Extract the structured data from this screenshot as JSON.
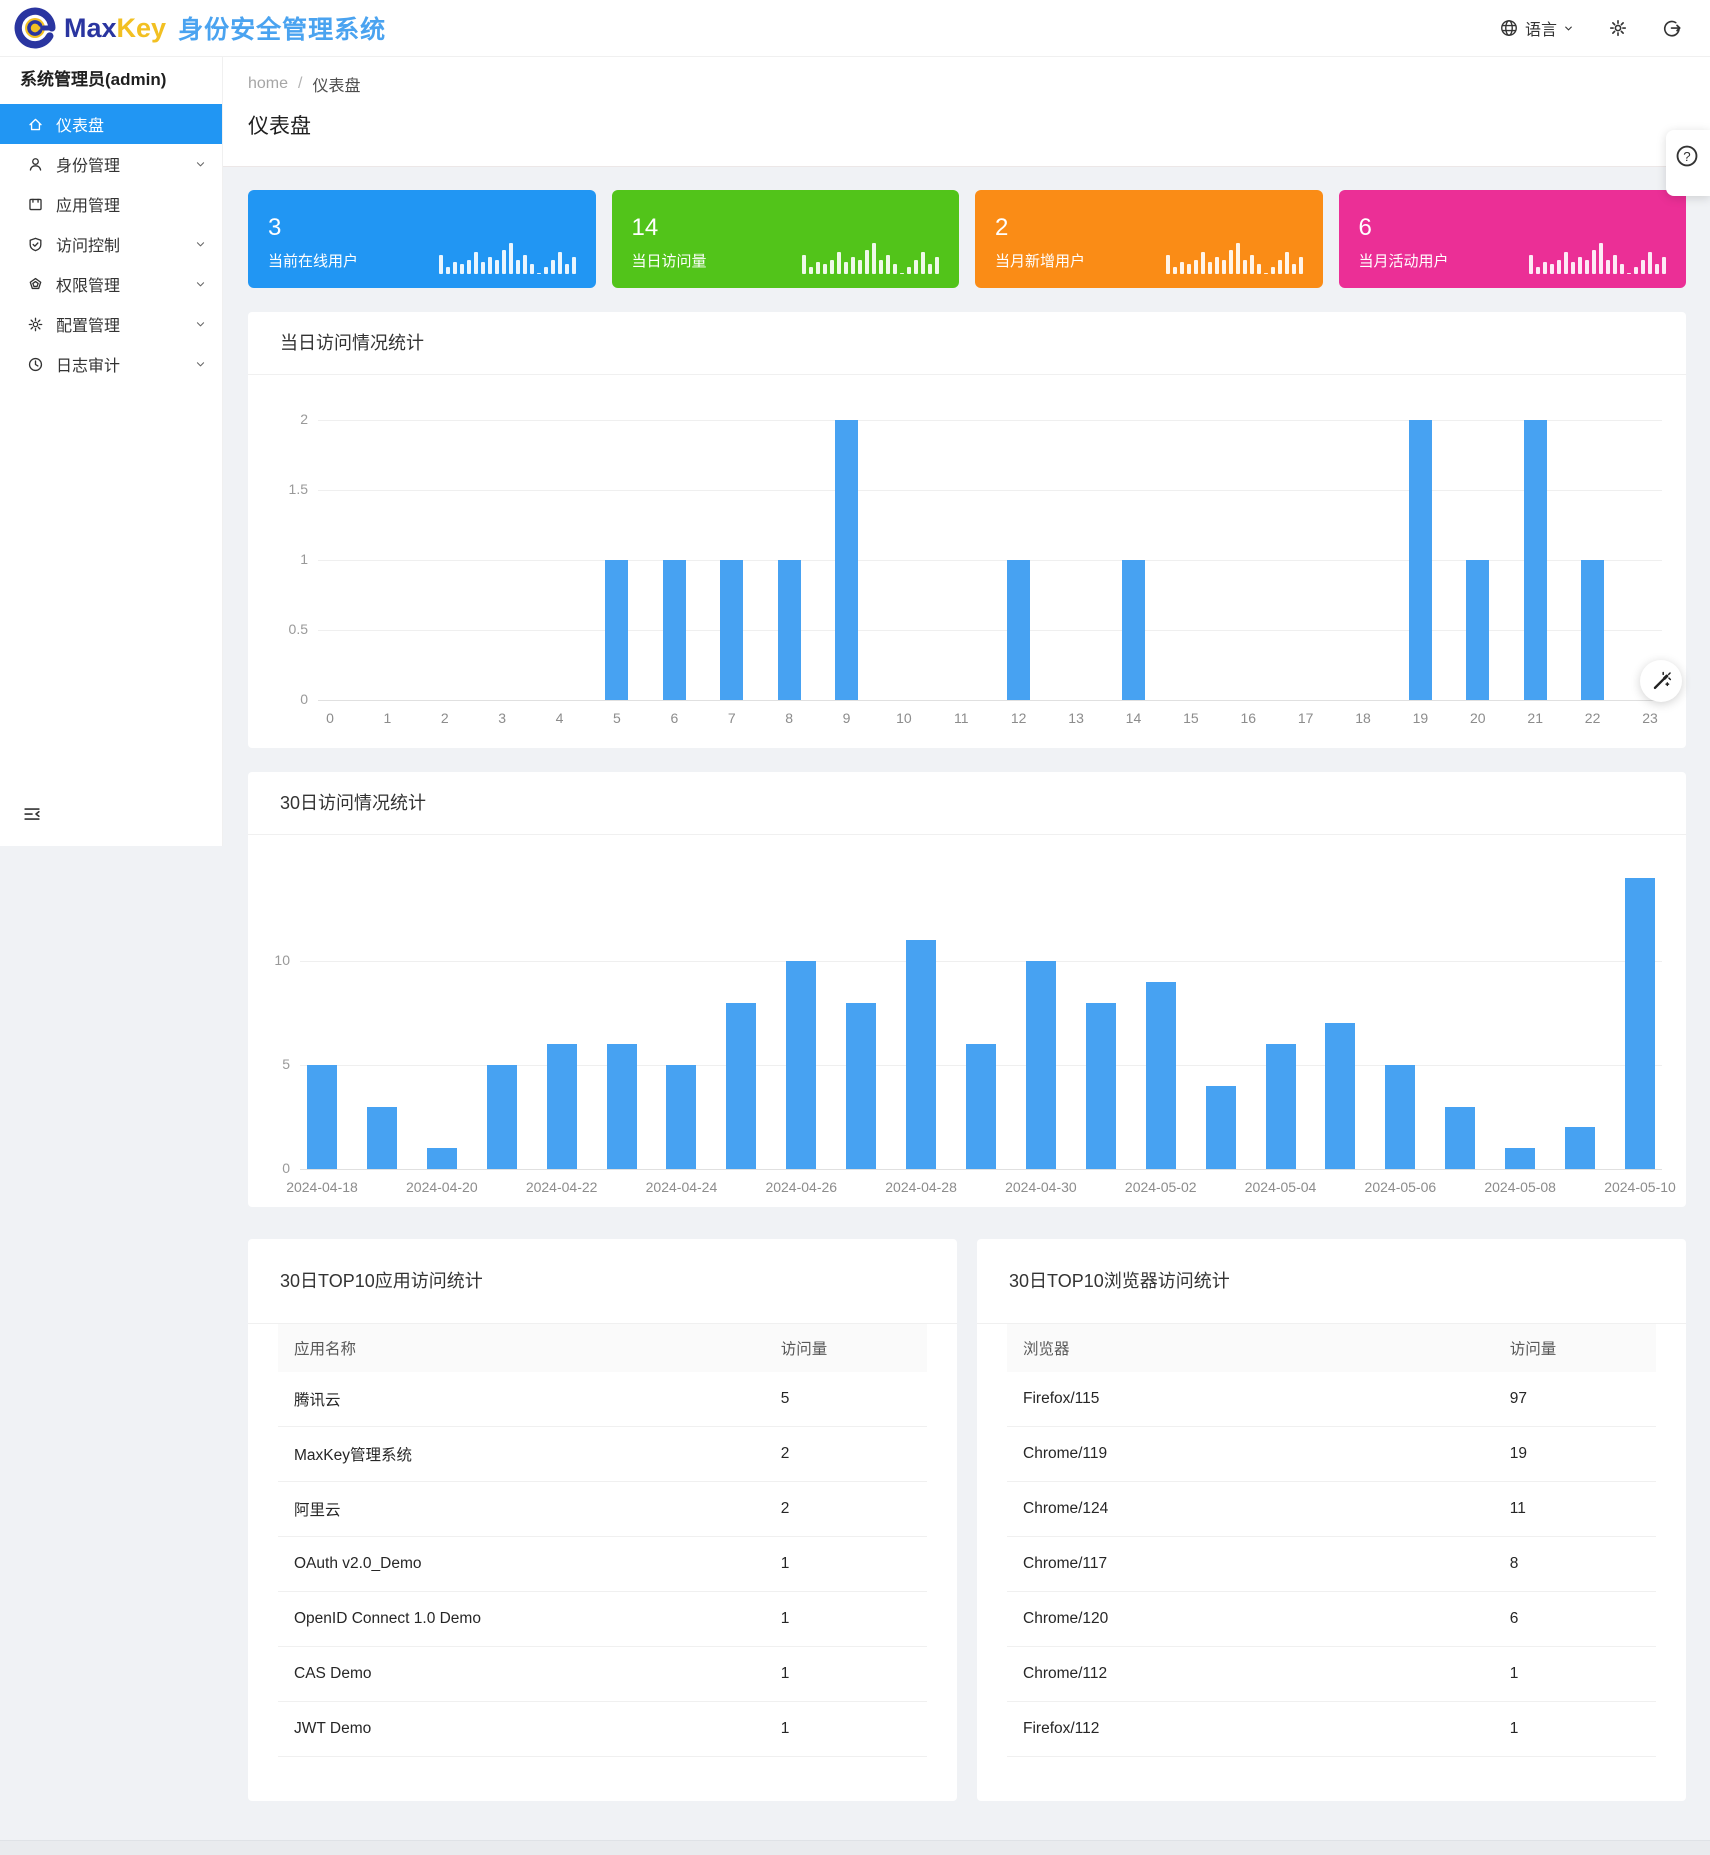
{
  "topbar": {
    "brand_max": "Max",
    "brand_key": "Key",
    "subtitle": "身份安全管理系统",
    "lang_label": "语言"
  },
  "sidebar": {
    "admin_title": "系统管理员(admin)",
    "items": [
      {
        "id": "dashboard",
        "icon": "home",
        "label": "仪表盘",
        "active": true,
        "chevron": false
      },
      {
        "id": "identity",
        "icon": "user",
        "label": "身份管理",
        "active": false,
        "chevron": true
      },
      {
        "id": "application",
        "icon": "app",
        "label": "应用管理",
        "active": false,
        "chevron": false
      },
      {
        "id": "access",
        "icon": "shield",
        "label": "访问控制",
        "active": false,
        "chevron": true
      },
      {
        "id": "permission",
        "icon": "gem",
        "label": "权限管理",
        "active": false,
        "chevron": true
      },
      {
        "id": "config",
        "icon": "gear",
        "label": "配置管理",
        "active": false,
        "chevron": true
      },
      {
        "id": "audit",
        "icon": "clock",
        "label": "日志审计",
        "active": false,
        "chevron": true
      }
    ]
  },
  "breadcrumb": {
    "home": "home",
    "sep": "/",
    "current": "仪表盘"
  },
  "page_title": "仪表盘",
  "stats": {
    "sparkline": [
      8,
      3,
      5,
      4,
      6,
      9,
      5,
      7,
      6,
      10,
      13,
      6,
      8,
      4,
      0,
      3,
      6,
      9,
      4,
      7
    ],
    "cards": [
      {
        "value": "3",
        "label": "当前在线用户",
        "color": "#2196f3"
      },
      {
        "value": "14",
        "label": "当日访问量",
        "color": "#52c41a"
      },
      {
        "value": "2",
        "label": "当月新增用户",
        "color": "#fa8c16"
      },
      {
        "value": "6",
        "label": "当月活动用户",
        "color": "#eb2f96"
      }
    ]
  },
  "chart_data": [
    {
      "type": "bar",
      "title": "当日访问情况统计",
      "categories": [
        "0",
        "1",
        "2",
        "3",
        "4",
        "5",
        "6",
        "7",
        "8",
        "9",
        "10",
        "11",
        "12",
        "13",
        "14",
        "15",
        "16",
        "17",
        "18",
        "19",
        "20",
        "21",
        "22",
        "23"
      ],
      "values": [
        0,
        0,
        0,
        0,
        0,
        1,
        1,
        1,
        1,
        2,
        0,
        0,
        1,
        0,
        1,
        0,
        0,
        0,
        0,
        2,
        1,
        2,
        1,
        0
      ],
      "xlabel": "",
      "ylabel": "",
      "ylim": [
        0,
        2.2
      ],
      "yticks": [
        0,
        0.5,
        1,
        1.5,
        2
      ],
      "label_every": 1,
      "grid": true,
      "bar_color": "#47a2f2"
    },
    {
      "type": "bar",
      "title": "30日访问情况统计",
      "categories": [
        "2024-04-18",
        "2024-04-19",
        "2024-04-20",
        "2024-04-21",
        "2024-04-22",
        "2024-04-23",
        "2024-04-24",
        "2024-04-25",
        "2024-04-26",
        "2024-04-27",
        "2024-04-28",
        "2024-04-29",
        "2024-04-30",
        "2024-05-01",
        "2024-05-02",
        "2024-05-03",
        "2024-05-04",
        "2024-05-05",
        "2024-05-06",
        "2024-05-07",
        "2024-05-08",
        "2024-05-09",
        "2024-05-10"
      ],
      "values": [
        5,
        3,
        1,
        5,
        6,
        6,
        5,
        8,
        10,
        8,
        11,
        6,
        10,
        8,
        9,
        4,
        6,
        7,
        5,
        3,
        1,
        2,
        14
      ],
      "xlabel": "",
      "ylabel": "",
      "ylim": [
        0,
        15
      ],
      "yticks": [
        0,
        5,
        10
      ],
      "label_every": 2,
      "grid": true,
      "bar_color": "#47a2f2"
    }
  ],
  "tables": [
    {
      "title": "30日TOP10应用访问统计",
      "headers": [
        "应用名称",
        "访问量"
      ],
      "rows": [
        [
          "腾讯云",
          "5"
        ],
        [
          "MaxKey管理系统",
          "2"
        ],
        [
          "阿里云",
          "2"
        ],
        [
          "OAuth v2.0_Demo",
          "1"
        ],
        [
          "OpenID Connect 1.0 Demo",
          "1"
        ],
        [
          "CAS Demo",
          "1"
        ],
        [
          "JWT Demo",
          "1"
        ]
      ]
    },
    {
      "title": "30日TOP10浏览器访问统计",
      "headers": [
        "浏览器",
        "访问量"
      ],
      "rows": [
        [
          "Firefox/115",
          "97"
        ],
        [
          "Chrome/119",
          "19"
        ],
        [
          "Chrome/124",
          "11"
        ],
        [
          "Chrome/117",
          "8"
        ],
        [
          "Chrome/120",
          "6"
        ],
        [
          "Chrome/112",
          "1"
        ],
        [
          "Firefox/112",
          "1"
        ]
      ]
    }
  ],
  "icons": {
    "topbar": [
      "globe-icon",
      "chevron-down-icon",
      "gear-icon",
      "logout-icon"
    ],
    "floating": [
      "wand-icon",
      "help-icon"
    ],
    "sidebar_bottom": "menu-fold-icon"
  },
  "colors": {
    "accent_blue": "#2196f3",
    "bar_blue": "#47a2f2",
    "brand_navy": "#2a35a0",
    "brand_yellow": "#f2c022",
    "brand_lightblue": "#4aa3f0",
    "page_bg": "#f0f2f5"
  }
}
